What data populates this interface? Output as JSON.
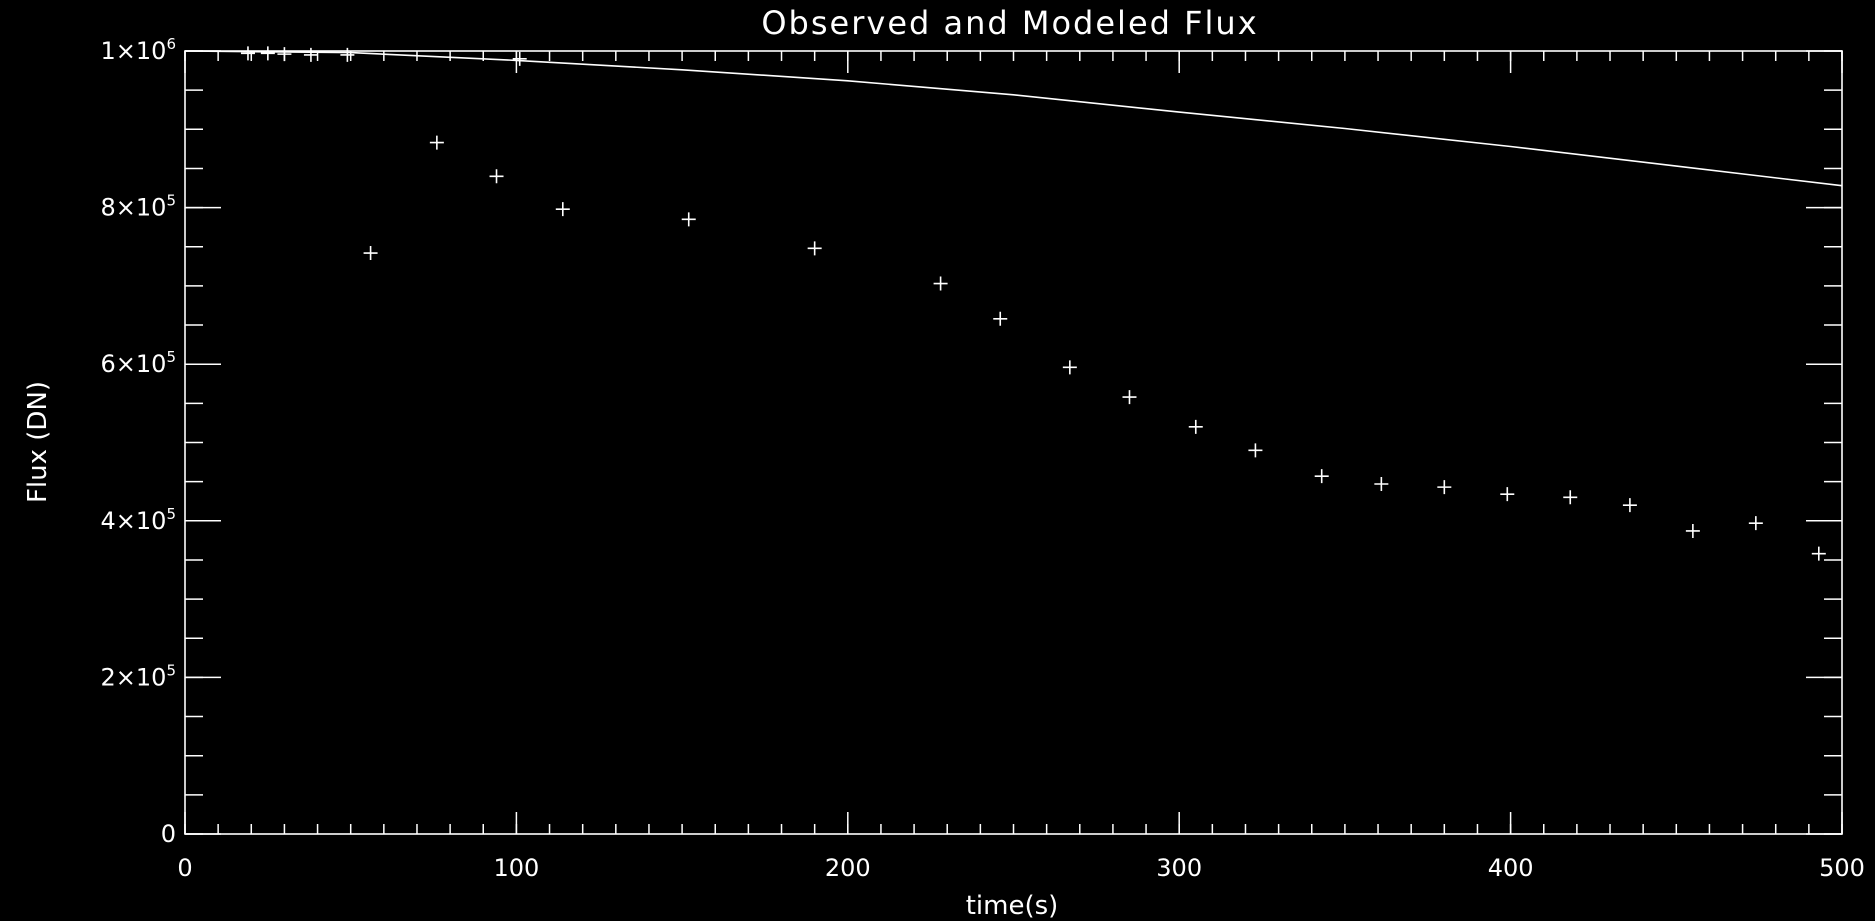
{
  "colors": {
    "background": "#000000",
    "foreground": "#ffffff"
  },
  "chart_data": {
    "type": "scatter",
    "title": "Observed and Modeled Flux",
    "xlabel": "time(s)",
    "ylabel": "Flux (DN)",
    "xlim": [
      0,
      500
    ],
    "ylim": [
      0,
      1000000
    ],
    "grid": false,
    "x_ticks": [
      {
        "value": 0,
        "label": "0"
      },
      {
        "value": 100,
        "label": "100"
      },
      {
        "value": 200,
        "label": "200"
      },
      {
        "value": 300,
        "label": "300"
      },
      {
        "value": 400,
        "label": "400"
      },
      {
        "value": 500,
        "label": "500"
      }
    ],
    "y_ticks": [
      {
        "value": 0,
        "mant": "0",
        "exp": ""
      },
      {
        "value": 200000,
        "mant": "2×10",
        "exp": "5"
      },
      {
        "value": 400000,
        "mant": "4×10",
        "exp": "5"
      },
      {
        "value": 600000,
        "mant": "6×10",
        "exp": "5"
      },
      {
        "value": 800000,
        "mant": "8×10",
        "exp": "5"
      },
      {
        "value": 1000000,
        "mant": "1×10",
        "exp": "6"
      }
    ],
    "x_minor_step": 10,
    "y_minor_step": 50000,
    "series": [
      {
        "kind": "points",
        "x": [
          19,
          25,
          30,
          38,
          49,
          56,
          76,
          94,
          101,
          114,
          152,
          190,
          228,
          246,
          267,
          285,
          305,
          323,
          343,
          361,
          380,
          399,
          418,
          436,
          455,
          474,
          493
        ],
        "y": [
          997000,
          997000,
          996000,
          995000,
          995000,
          742000,
          883000,
          840000,
          990000,
          798000,
          785000,
          748000,
          703000,
          658000,
          596000,
          558000,
          520000,
          490000,
          457000,
          447000,
          443000,
          434000,
          430000,
          420000,
          387000,
          397000,
          358000
        ]
      },
      {
        "kind": "line",
        "x": [
          0,
          50,
          100,
          150,
          200,
          250,
          300,
          350,
          400,
          450,
          500
        ],
        "y": [
          1000000,
          998000,
          988000,
          976000,
          962000,
          944000,
          922000,
          901000,
          878000,
          853000,
          828000
        ]
      }
    ]
  }
}
